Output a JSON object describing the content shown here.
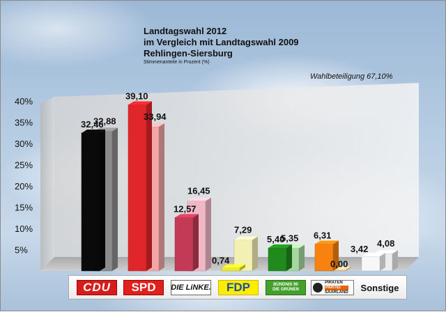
{
  "header": {
    "line1": "Landtagswahl 2012",
    "line2": "im Vergleich mit Landtagswahl 2009",
    "line3": "Rehlingen-Siersburg",
    "subtitle": "Stimmenanteile in Prozent (%)"
  },
  "turnout": "Wahlbeteiligung 67,10%",
  "logos": {
    "cdu": "CDU",
    "spd": "SPD",
    "linke": "DIE LiNKE.",
    "fdp": "FDP",
    "gruene_1": "BÜNDNIS 90",
    "gruene_2": "DIE GRÜNEN",
    "piraten_1": "PIRATEN",
    "piraten_2": "PARTEI",
    "piraten_3": "SAARLAND",
    "sonstige": "Sonstige"
  },
  "chart_data": {
    "type": "bar",
    "title": "Landtagswahl 2012 im Vergleich mit Landtagswahl 2009 Rehlingen-Siersburg",
    "ylabel": "Stimmenanteile in Prozent (%)",
    "categories": [
      "CDU",
      "SPD",
      "DIE LiNKE.",
      "FDP",
      "BÜNDNIS 90 DIE GRÜNEN",
      "PIRATEN PARTEI SAARLAND",
      "Sonstige"
    ],
    "series": [
      {
        "values": [
          32.46,
          39.1,
          12.57,
          0.74,
          5.4,
          6.31,
          3.42
        ],
        "labels": [
          "32,46",
          "39,10",
          "12,57",
          "0,74",
          "5,40",
          "6,31",
          "3,42"
        ],
        "colors": [
          "#0a0a0a",
          "#e1262a",
          "#c23a55",
          "#f0e92a",
          "#218a1d",
          "#f7820f",
          "#f7f7f7"
        ]
      },
      {
        "values": [
          32.88,
          33.94,
          16.45,
          7.29,
          5.35,
          0.0,
          4.08
        ],
        "labels": [
          "32,88",
          "33,94",
          "16,45",
          "7,29",
          "5,35",
          "0,00",
          "4,08"
        ],
        "colors": [
          "#8c8c8c",
          "#f3a6a6",
          "#f0b8c6",
          "#f3f0b4",
          "#a7d7a0",
          "#f7c79a",
          "#ececec"
        ]
      }
    ],
    "yticks": [
      "5%",
      "10%",
      "15%",
      "20%",
      "25%",
      "30%",
      "35%",
      "40%"
    ],
    "ylim": [
      0,
      45
    ],
    "grid": false,
    "legend": "none"
  }
}
